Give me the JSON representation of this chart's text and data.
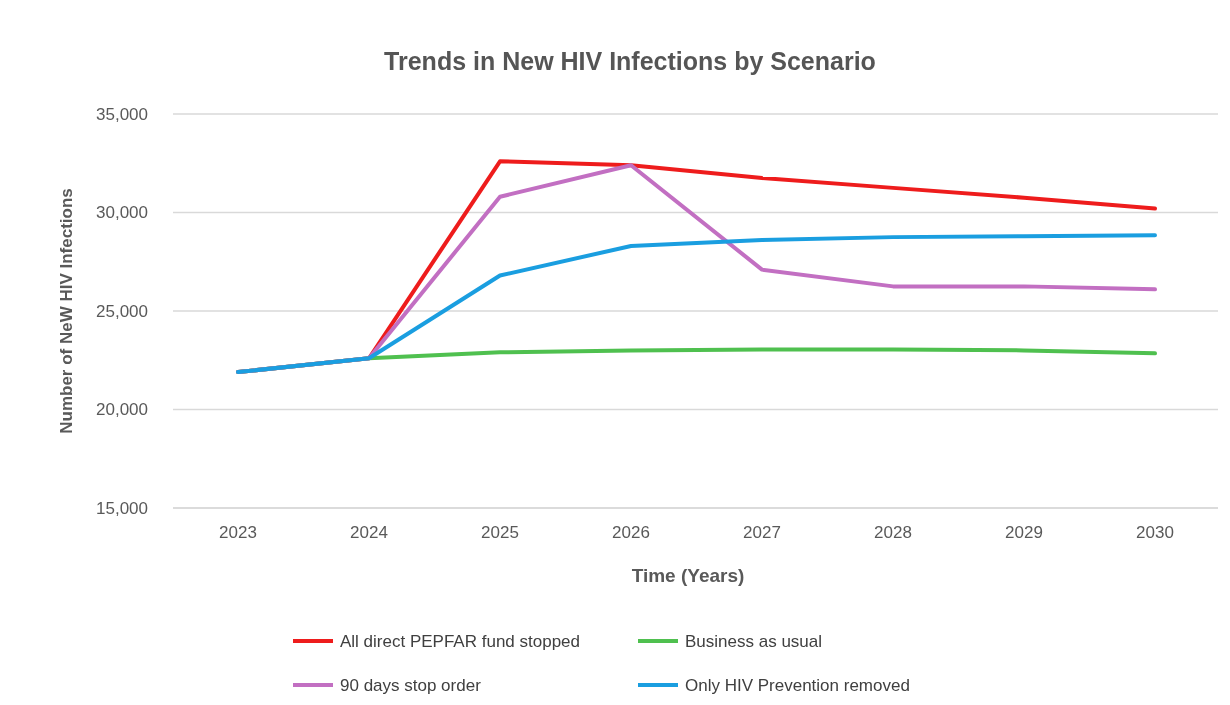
{
  "chart_data": {
    "type": "line",
    "title": "Trends in New HIV Infections by Scenario",
    "xlabel": "Time (Years)",
    "ylabel": "Number of NeW HIV Infections",
    "categories": [
      "2023",
      "2024",
      "2025",
      "2026",
      "2027",
      "2028",
      "2029",
      "2030"
    ],
    "series": [
      {
        "name": "All direct PEPFAR fund stopped",
        "color": "#ee1c1c",
        "values": [
          21900,
          22600,
          32600,
          32400,
          31750,
          31250,
          30750,
          30200
        ]
      },
      {
        "name": "Business as usual",
        "color": "#4fc04f",
        "values": [
          21900,
          22600,
          22900,
          23000,
          23050,
          23050,
          23000,
          22850
        ]
      },
      {
        "name": "90 days stop order",
        "color": "#c26fc2",
        "values": [
          21900,
          22600,
          30800,
          32400,
          27100,
          26250,
          26250,
          26100
        ]
      },
      {
        "name": "Only HIV Prevention removed",
        "color": "#1a9ee0",
        "values": [
          21900,
          22600,
          26800,
          28300,
          28600,
          28750,
          28800,
          28850
        ]
      }
    ],
    "ylim": [
      15000,
      35000
    ],
    "yticks": [
      {
        "value": 15000,
        "label": "15,000"
      },
      {
        "value": 20000,
        "label": "20,000"
      },
      {
        "value": 25000,
        "label": "25,000"
      },
      {
        "value": 30000,
        "label": "30,000"
      },
      {
        "value": 35000,
        "label": "35,000"
      }
    ],
    "grid": "y",
    "legend": "bottom",
    "marker": "none",
    "line_style": "solid"
  }
}
